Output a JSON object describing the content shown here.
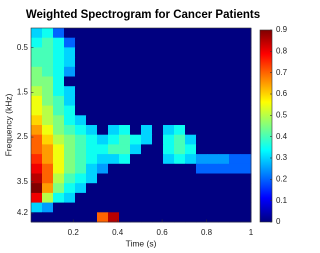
{
  "chart_data": {
    "type": "heatmap",
    "title": "Weighted Spectrogram for Cancer Patients",
    "x_label": "Time (s)",
    "y_label": "Frequency (kHz)",
    "xlim": [
      0.01,
      1
    ],
    "xticks": [
      0.2,
      0.4,
      0.6,
      0.8,
      1
    ],
    "ylim": [
      0.06,
      4.4
    ],
    "yticks": [
      0.5,
      1.5,
      2.5,
      3.5,
      4.2
    ],
    "y_reversed": true,
    "colormap": "jet",
    "clim": [
      0,
      0.9
    ],
    "cticks": [
      0,
      0.1,
      0.2,
      0.3,
      0.4,
      0.5,
      0.6,
      0.7,
      0.8,
      0.9
    ],
    "values": [
      [
        0.3,
        0.35,
        0.2,
        0,
        0,
        0,
        0,
        0,
        0,
        0,
        0,
        0,
        0,
        0,
        0,
        0,
        0,
        0,
        0,
        0
      ],
      [
        0.35,
        0.4,
        0.35,
        0.2,
        0,
        0,
        0,
        0,
        0,
        0,
        0,
        0,
        0,
        0,
        0,
        0,
        0,
        0,
        0,
        0
      ],
      [
        0.4,
        0.4,
        0.35,
        0.3,
        0,
        0,
        0,
        0,
        0,
        0,
        0,
        0,
        0,
        0,
        0,
        0,
        0,
        0,
        0,
        0
      ],
      [
        0.4,
        0.4,
        0.35,
        0.3,
        0,
        0,
        0,
        0,
        0,
        0,
        0,
        0,
        0,
        0,
        0,
        0,
        0,
        0,
        0,
        0
      ],
      [
        0.45,
        0.4,
        0.35,
        0.25,
        0,
        0,
        0,
        0,
        0,
        0,
        0,
        0,
        0,
        0,
        0,
        0,
        0,
        0,
        0,
        0
      ],
      [
        0.45,
        0.45,
        0.35,
        0,
        0,
        0,
        0,
        0,
        0,
        0,
        0,
        0,
        0,
        0,
        0,
        0,
        0,
        0,
        0,
        0
      ],
      [
        0.5,
        0.45,
        0.35,
        0.3,
        0,
        0,
        0,
        0,
        0,
        0,
        0,
        0,
        0,
        0,
        0,
        0,
        0,
        0,
        0,
        0
      ],
      [
        0.55,
        0.45,
        0.4,
        0.3,
        0,
        0,
        0,
        0,
        0,
        0,
        0,
        0,
        0,
        0,
        0,
        0,
        0,
        0,
        0,
        0
      ],
      [
        0.55,
        0.5,
        0.4,
        0.35,
        0,
        0,
        0,
        0,
        0,
        0,
        0,
        0,
        0,
        0,
        0,
        0,
        0,
        0,
        0,
        0
      ],
      [
        0.6,
        0.5,
        0.45,
        0.35,
        0.3,
        0,
        0,
        0,
        0,
        0,
        0,
        0,
        0,
        0,
        0,
        0,
        0,
        0,
        0,
        0
      ],
      [
        0.65,
        0.55,
        0.45,
        0.4,
        0.35,
        0.3,
        0,
        0.3,
        0.35,
        0,
        0.3,
        0,
        0.3,
        0.35,
        0,
        0,
        0,
        0,
        0,
        0
      ],
      [
        0.7,
        0.6,
        0.5,
        0.45,
        0.4,
        0.35,
        0.3,
        0.35,
        0.4,
        0.35,
        0.3,
        0,
        0.35,
        0.4,
        0.3,
        0,
        0,
        0,
        0,
        0
      ],
      [
        0.7,
        0.65,
        0.55,
        0.45,
        0.4,
        0.35,
        0.35,
        0.4,
        0.4,
        0.3,
        0,
        0,
        0.35,
        0.4,
        0.35,
        0,
        0,
        0,
        0,
        0
      ],
      [
        0.75,
        0.65,
        0.55,
        0.45,
        0.4,
        0.35,
        0.3,
        0.3,
        0.35,
        0,
        0,
        0,
        0.3,
        0.35,
        0.3,
        0.25,
        0.25,
        0.25,
        0.2,
        0.2
      ],
      [
        0.8,
        0.7,
        0.55,
        0.45,
        0.4,
        0.3,
        0.25,
        0,
        0,
        0,
        0,
        0,
        0,
        0,
        0,
        0.2,
        0.2,
        0.2,
        0.2,
        0.2
      ],
      [
        0.85,
        0.7,
        0.5,
        0.4,
        0.35,
        0.3,
        0,
        0,
        0,
        0,
        0,
        0,
        0,
        0,
        0,
        0,
        0,
        0,
        0,
        0
      ],
      [
        0.9,
        0.65,
        0.45,
        0.35,
        0.3,
        0,
        0,
        0,
        0,
        0,
        0,
        0,
        0,
        0,
        0,
        0,
        0,
        0,
        0,
        0
      ],
      [
        0.8,
        0.5,
        0.35,
        0.3,
        0,
        0,
        0,
        0,
        0,
        0,
        0,
        0,
        0,
        0,
        0,
        0,
        0,
        0,
        0,
        0
      ],
      [
        0.3,
        0.25,
        0,
        0,
        0,
        0,
        0,
        0,
        0,
        0,
        0,
        0,
        0,
        0,
        0,
        0,
        0,
        0,
        0,
        0
      ],
      [
        0,
        0,
        0,
        0,
        0,
        0,
        0.7,
        0.85,
        0,
        0,
        0,
        0,
        0,
        0,
        0,
        0,
        0,
        0,
        0,
        0
      ]
    ]
  }
}
